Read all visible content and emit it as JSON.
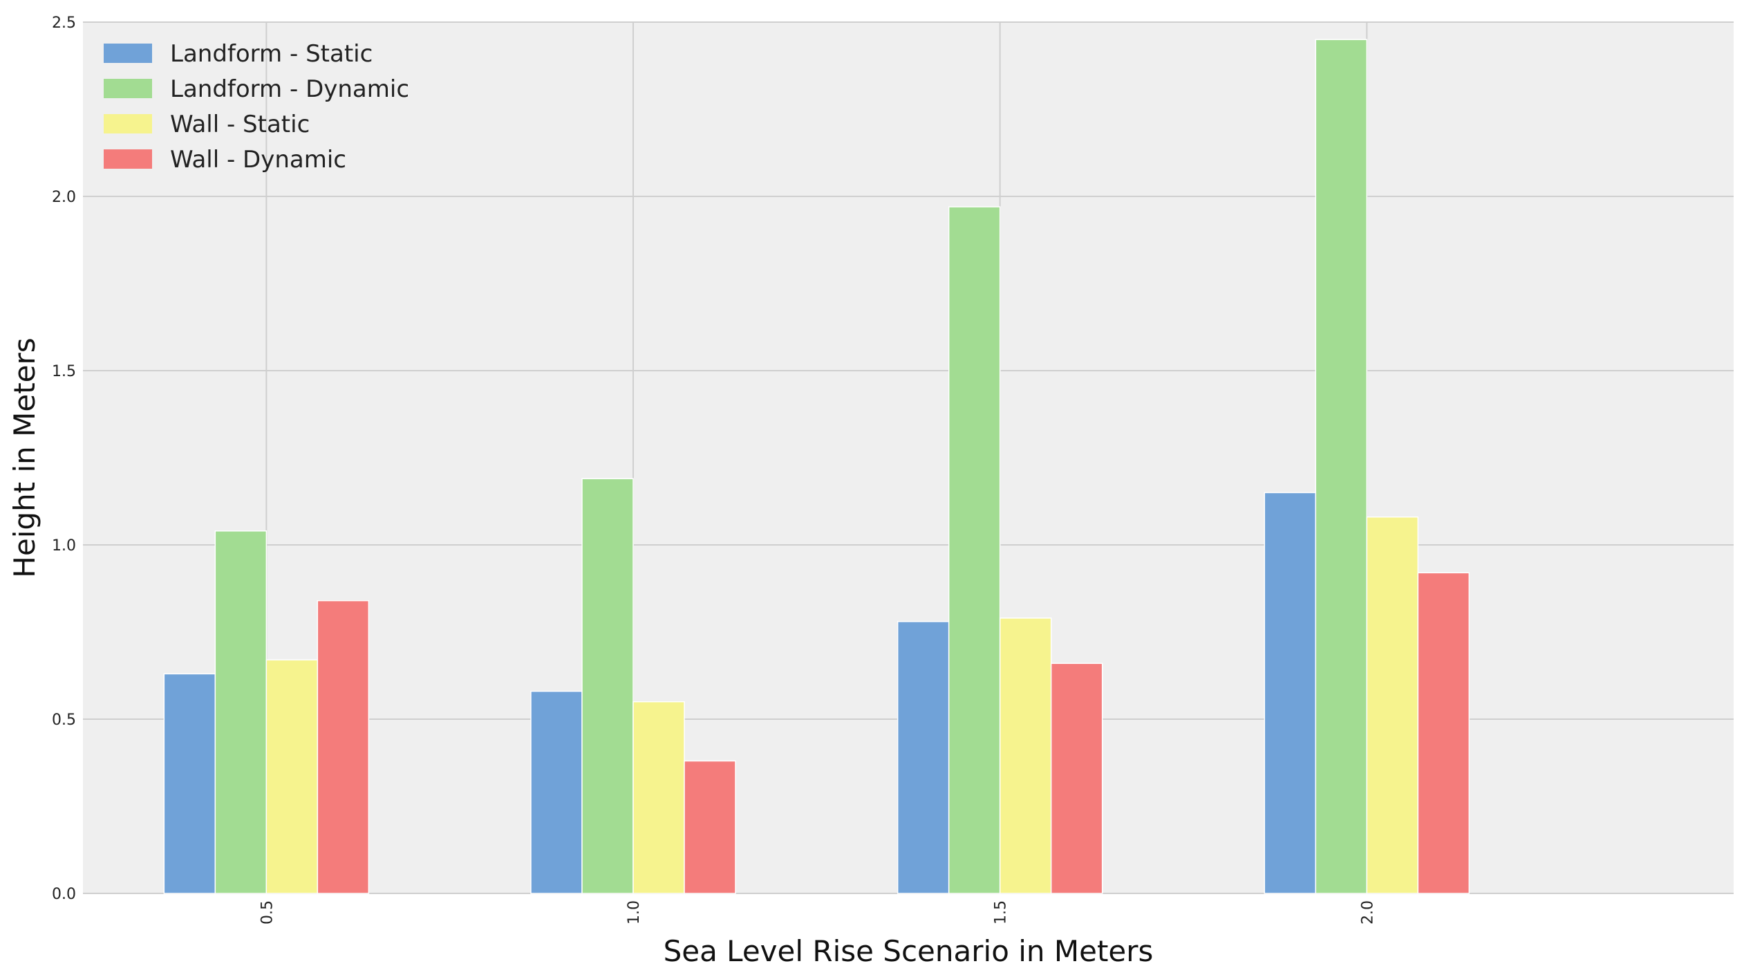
{
  "chart_data": {
    "type": "bar",
    "categories": [
      "0.5",
      "1.0",
      "1.5",
      "2.0"
    ],
    "series": [
      {
        "name": "Landform - Static",
        "color": "#70a2d8",
        "values": [
          0.63,
          0.58,
          0.78,
          1.15
        ]
      },
      {
        "name": "Landform - Dynamic",
        "color": "#a2dc92",
        "values": [
          1.04,
          1.19,
          1.97,
          2.45
        ]
      },
      {
        "name": "Wall - Static",
        "color": "#f6f38e",
        "values": [
          0.67,
          0.55,
          0.79,
          1.08
        ]
      },
      {
        "name": "Wall - Dynamic",
        "color": "#f47c7b",
        "values": [
          0.84,
          0.38,
          0.66,
          0.92
        ]
      }
    ],
    "xlabel": "Sea Level Rise Scenario in Meters",
    "ylabel": "Height in Meters",
    "ylim": [
      0,
      2.5
    ],
    "yticks": [
      "0.0",
      "0.5",
      "1.0",
      "1.5",
      "2.0",
      "2.5"
    ],
    "grid": true,
    "legend_position": "top-left",
    "background_color": "#efefef"
  }
}
